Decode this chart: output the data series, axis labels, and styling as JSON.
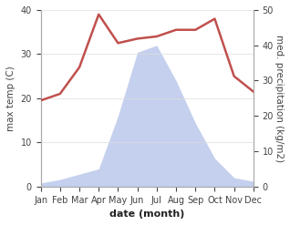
{
  "months": [
    "Jan",
    "Feb",
    "Mar",
    "Apr",
    "May",
    "Jun",
    "Jul",
    "Aug",
    "Sep",
    "Oct",
    "Nov",
    "Dec"
  ],
  "temperature": [
    19.5,
    21.0,
    27.0,
    39.0,
    32.5,
    33.5,
    34.0,
    35.5,
    35.5,
    38.0,
    25.0,
    21.5
  ],
  "precipitation": [
    1.0,
    2.0,
    3.5,
    5.0,
    20.0,
    38.0,
    40.0,
    30.0,
    18.0,
    8.0,
    2.5,
    1.5
  ],
  "temp_color": "#c0504d",
  "precip_fill_color": "#c5d0ee",
  "temp_ylim": [
    0,
    40
  ],
  "precip_ylim": [
    0,
    50
  ],
  "temp_ylabel": "max temp (C)",
  "precip_ylabel": "med. precipitation (kg/m2)",
  "xlabel": "date (month)",
  "temp_yticks": [
    0,
    10,
    20,
    30,
    40
  ],
  "precip_yticks": [
    0,
    10,
    20,
    30,
    40,
    50
  ],
  "bg_color": "#ffffff",
  "label_fontsize": 7.5,
  "tick_fontsize": 7,
  "xlabel_fontsize": 8
}
